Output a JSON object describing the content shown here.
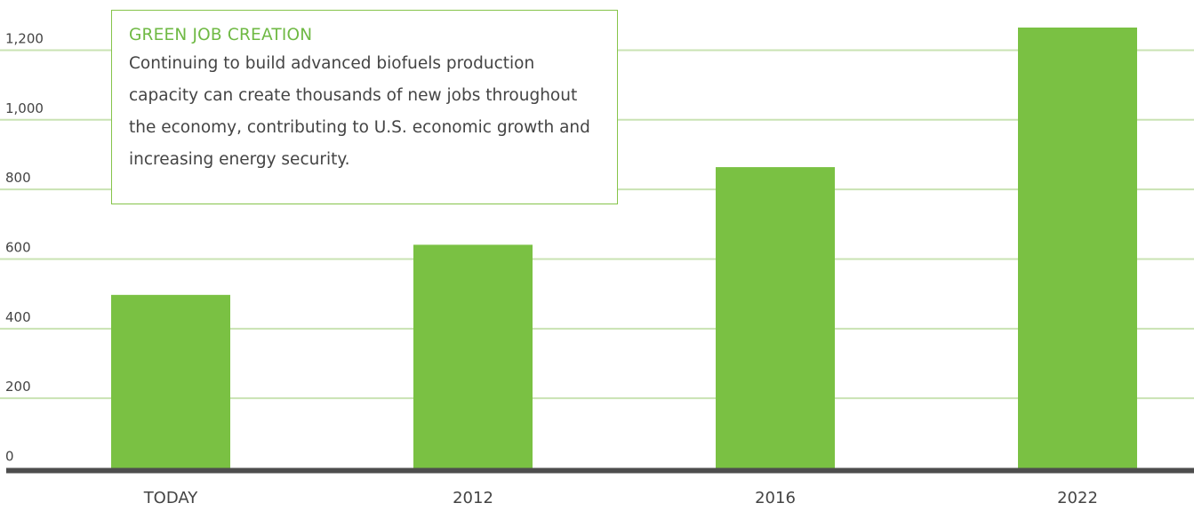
{
  "chart_data": {
    "type": "bar",
    "categories": [
      "TODAY",
      "2012",
      "2016",
      "2022"
    ],
    "values": [
      497,
      641,
      864,
      1265
    ],
    "title": "",
    "xlabel": "",
    "ylabel": "",
    "ylim": [
      0,
      1200
    ],
    "yticks": [
      0,
      200,
      400,
      600,
      800,
      1000,
      1200
    ],
    "ytick_labels": [
      "0",
      "200",
      "400",
      "600",
      "800",
      "1,000",
      "1,200"
    ],
    "grid": true,
    "legend": "none"
  },
  "callout": {
    "title": "GREEN JOB CREATION",
    "body": "Continuing to build advanced biofuels production capacity can create thousands of new jobs throughout the economy, contributing to U.S. economic growth and increasing energy security."
  },
  "colors": {
    "bar": "#7ac143",
    "grid": "#c9e3b3",
    "axis": "#4d4d4d",
    "tick_text": "#444444",
    "callout_title": "#6fb944",
    "callout_border": "#86c44a"
  }
}
